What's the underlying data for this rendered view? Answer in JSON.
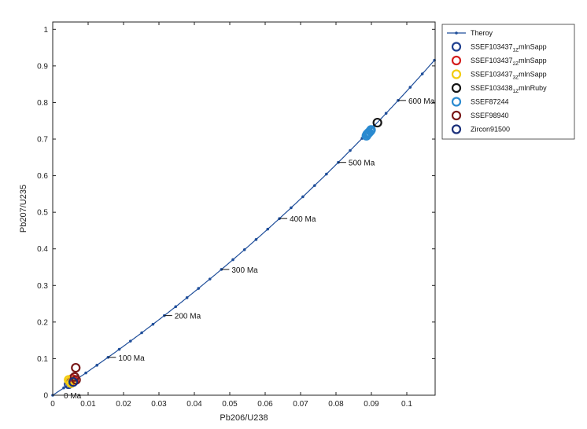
{
  "chart_data": {
    "type": "scatter",
    "xlabel": "Pb206/U238",
    "ylabel": "Pb207/U235",
    "xlim": [
      0,
      0.108
    ],
    "ylim": [
      0,
      1.02
    ],
    "x_ticks": [
      0,
      0.01,
      0.02,
      0.03,
      0.04,
      0.05,
      0.06,
      0.07,
      0.08,
      0.09,
      0.1
    ],
    "x_tick_labels": [
      "0",
      "0.01",
      "0.02",
      "0.03",
      "0.04",
      "0.05",
      "0.06",
      "0.07",
      "0.08",
      "0.09",
      "0.1"
    ],
    "y_ticks": [
      0,
      0.1,
      0.2,
      0.3,
      0.4,
      0.5,
      0.6,
      0.7,
      0.8,
      0.9,
      1
    ],
    "y_tick_labels": [
      "0",
      "0.1",
      "0.2",
      "0.3",
      "0.4",
      "0.5",
      "0.6",
      "0.7",
      "0.8",
      "0.9",
      "1"
    ],
    "legend_position": "top-right",
    "concordia": {
      "name": "Theroy",
      "color": "#1f4e9a",
      "age_step_ma": 20,
      "max_age_ma": 660
    },
    "age_labels": [
      {
        "age_ma": 0,
        "text": "0 Ma"
      },
      {
        "age_ma": 100,
        "text": "100 Ma"
      },
      {
        "age_ma": 200,
        "text": "200 Ma"
      },
      {
        "age_ma": 300,
        "text": "300 Ma"
      },
      {
        "age_ma": 400,
        "text": "400 Ma"
      },
      {
        "age_ma": 500,
        "text": "500 Ma"
      },
      {
        "age_ma": 600,
        "text": "600 Ma"
      }
    ],
    "series": [
      {
        "name": "SSEF103437",
        "subscript": "1Z",
        "suffix": "mlnSapp",
        "color": "#1f3f8f",
        "points": [
          [
            0.0045,
            0.03
          ],
          [
            0.005,
            0.034
          ]
        ]
      },
      {
        "name": "SSEF103437",
        "subscript": "2Z",
        "suffix": "mlnSapp",
        "color": "#d42020",
        "points": [
          [
            0.0055,
            0.045
          ],
          [
            0.006,
            0.04
          ]
        ]
      },
      {
        "name": "SSEF103437",
        "subscript": "3Z",
        "suffix": "mlnSapp",
        "color": "#f2cc10",
        "points": [
          [
            0.0048,
            0.038
          ],
          [
            0.0052,
            0.033
          ],
          [
            0.0045,
            0.042
          ]
        ]
      },
      {
        "name": "SSEF103438",
        "subscript": "1Z",
        "suffix": "mlnRuby",
        "color": "#151515",
        "points": [
          [
            0.0917,
            0.745
          ]
        ]
      },
      {
        "name": "SSEF87244",
        "subscript": "",
        "suffix": "",
        "color": "#2a8ad0",
        "points": [
          [
            0.0888,
            0.713
          ],
          [
            0.0893,
            0.718
          ],
          [
            0.0897,
            0.722
          ],
          [
            0.0886,
            0.709
          ],
          [
            0.0899,
            0.725
          ],
          [
            0.0891,
            0.716
          ]
        ]
      },
      {
        "name": "SSEF98940",
        "subscript": "",
        "suffix": "",
        "color": "#7a1a1a",
        "points": [
          [
            0.0065,
            0.075
          ],
          [
            0.0062,
            0.05
          ],
          [
            0.0066,
            0.042
          ]
        ]
      },
      {
        "name": "Zircon91500",
        "subscript": "",
        "suffix": "",
        "color": "#1a2f7a",
        "points": [
          [
            0.0058,
            0.036
          ]
        ]
      }
    ]
  }
}
